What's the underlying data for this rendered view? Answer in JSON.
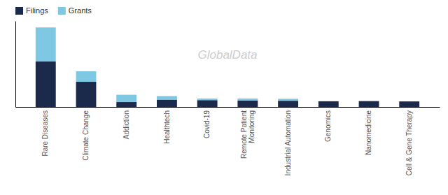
{
  "chart_data": {
    "type": "bar",
    "stacked": true,
    "categories": [
      "Rare Diseases",
      "Climate Change",
      "Addiction",
      "Healthtech",
      "Covid-19",
      "Remote Patient\nMonitoring",
      "Industrial Automation",
      "Genomics",
      "Nanomedicine",
      "Cell & Gene Therapy"
    ],
    "series": [
      {
        "name": "Filings",
        "color": "#1b2a4a",
        "values": [
          280,
          155,
          30,
          45,
          42,
          40,
          38,
          35,
          36,
          34
        ]
      },
      {
        "name": "Grants",
        "color": "#7ec8e3",
        "values": [
          210,
          65,
          45,
          22,
          10,
          12,
          12,
          0,
          0,
          0
        ]
      }
    ],
    "ylim": [
      0,
      530
    ],
    "annotations": [
      "GlobalData"
    ],
    "legend": "upper left",
    "grid": false,
    "tick_labels": "x"
  }
}
